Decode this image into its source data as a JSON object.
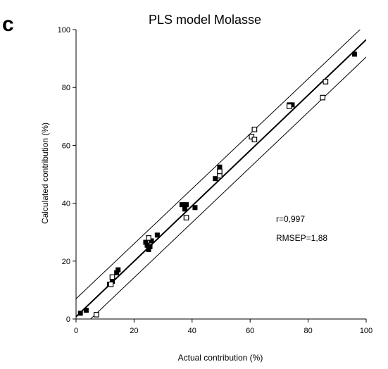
{
  "panel_label": "c",
  "chart_data": {
    "type": "scatter",
    "title": "PLS model Molasse",
    "xlabel": "Actual contribution (%)",
    "ylabel": "Calculated contribution (%)",
    "xlim": [
      0,
      100
    ],
    "ylim": [
      0,
      100
    ],
    "x_ticks": [
      0,
      20,
      40,
      60,
      80,
      100
    ],
    "y_ticks": [
      0,
      20,
      40,
      60,
      80,
      100
    ],
    "grid": false,
    "legend": "none",
    "annotations": [
      "r=0,997",
      "RMSEP=1,88"
    ],
    "lines": [
      {
        "role": "fit",
        "points": [
          [
            0,
            0.8
          ],
          [
            100,
            96.5
          ]
        ]
      },
      {
        "role": "upper-bound",
        "points": [
          [
            0,
            7
          ],
          [
            100,
            102
          ]
        ]
      },
      {
        "role": "lower-bound",
        "points": [
          [
            5,
            0
          ],
          [
            100,
            90.5
          ]
        ]
      }
    ],
    "series": [
      {
        "marker": "filled-square",
        "color": "#000000",
        "points": [
          [
            1.5,
            2
          ],
          [
            3.5,
            3
          ],
          [
            11.5,
            12
          ],
          [
            12.5,
            13
          ],
          [
            14,
            16
          ],
          [
            14.5,
            17
          ],
          [
            24,
            26.5
          ],
          [
            24.5,
            25.5
          ],
          [
            25,
            24
          ],
          [
            25.5,
            25
          ],
          [
            26,
            27
          ],
          [
            28,
            29
          ],
          [
            36.5,
            39.5
          ],
          [
            37.5,
            38
          ],
          [
            38,
            39.5
          ],
          [
            41,
            38.5
          ],
          [
            48,
            48.5
          ],
          [
            49.5,
            52.5
          ],
          [
            73.5,
            74
          ],
          [
            74.5,
            74
          ],
          [
            96,
            91.5
          ]
        ]
      },
      {
        "marker": "open-square",
        "color": "#000000",
        "points": [
          [
            7,
            1.5
          ],
          [
            12,
            12
          ],
          [
            12.5,
            14.5
          ],
          [
            25,
            28
          ],
          [
            38,
            35
          ],
          [
            49.5,
            49.5
          ],
          [
            49.5,
            51
          ],
          [
            60.5,
            63
          ],
          [
            61.5,
            62
          ],
          [
            61.5,
            65.5
          ],
          [
            73.5,
            73.5
          ],
          [
            85,
            76.5
          ],
          [
            86,
            82
          ]
        ]
      }
    ]
  }
}
